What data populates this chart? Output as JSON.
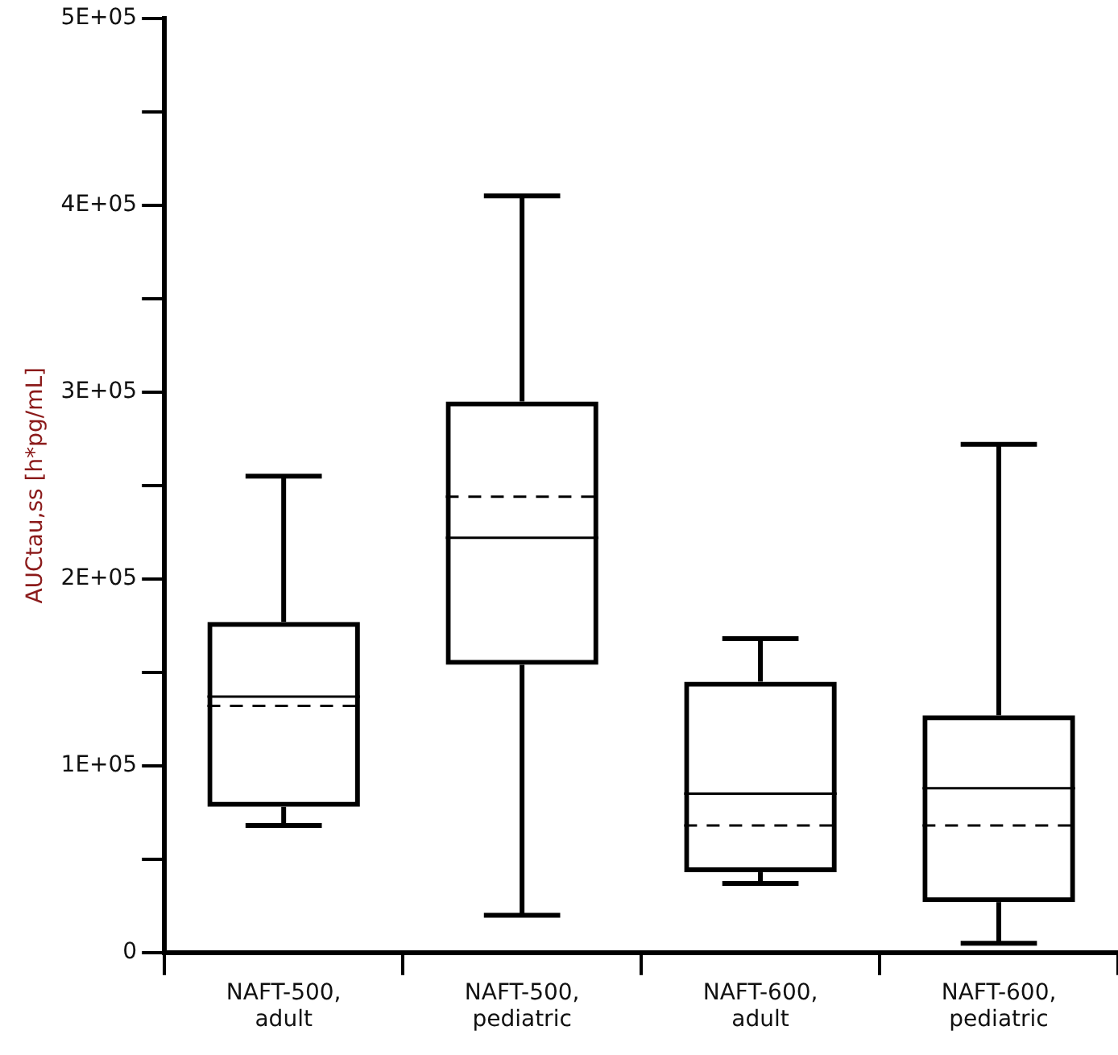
{
  "chart_data": {
    "type": "box",
    "categories": [
      "NAFT-500, adult",
      "NAFT-500, pediatric",
      "NAFT-600, adult",
      "NAFT-600, pediatric"
    ],
    "ylabel": "AUCtau,ss [h*pg/mL]",
    "boxes": [
      {
        "low": 68000,
        "q1": 78000,
        "median": 137000,
        "q3": 177000,
        "high": 255000,
        "mean": 132000
      },
      {
        "low": 20000,
        "q1": 154000,
        "median": 222000,
        "q3": 295000,
        "high": 405000,
        "mean": 244000
      },
      {
        "low": 37000,
        "q1": 43000,
        "median": 85000,
        "q3": 145000,
        "high": 168000,
        "mean": 68000
      },
      {
        "low": 5000,
        "q1": 27000,
        "median": 88000,
        "q3": 127000,
        "high": 272000,
        "mean": 68000
      }
    ],
    "color": "#000000",
    "ylim": [
      0,
      500000
    ],
    "yticks": [
      0,
      {
        "value": 50000,
        "label": null
      },
      {
        "value": 100000,
        "label": "1E+05"
      },
      {
        "value": 150000,
        "label": null
      },
      {
        "value": 200000,
        "label": "2E+05"
      },
      {
        "value": 250000,
        "label": null
      },
      {
        "value": 300000,
        "label": "3E+05"
      },
      {
        "value": 350000,
        "label": null
      },
      {
        "value": 400000,
        "label": "4E+05"
      },
      {
        "value": 450000,
        "label": null
      },
      {
        "value": 500000,
        "label": "5E+05"
      }
    ],
    "grid": false,
    "legend": false
  }
}
